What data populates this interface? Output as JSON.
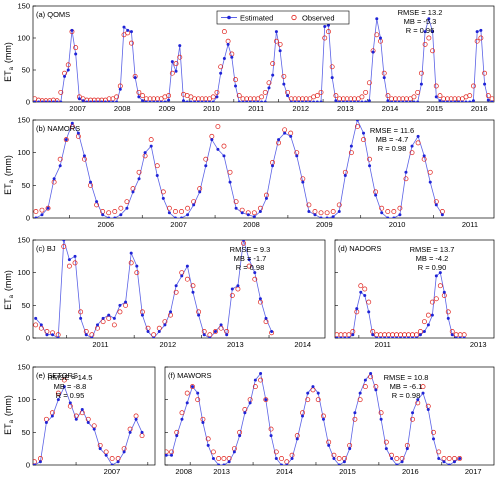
{
  "legend": {
    "estimated_label": "Estimated",
    "observed_label": "Observed",
    "placement": "top-center"
  },
  "ylabel_main": "ET",
  "ylabel_sub": "a",
  "ylabel_unit": "(mm)",
  "colors": {
    "estimated": "#1f23d6",
    "observed": "#e0221c",
    "line": "#5c63e6"
  },
  "chart_data": [
    {
      "type": "line",
      "id": "a",
      "title": "(a) QOMS",
      "stats": [
        "RMSE = 13.2",
        "MB  =  -5.3",
        "R  =  0.96"
      ],
      "ylim": [
        0,
        150
      ],
      "yticks": [
        "0",
        "50",
        "100",
        "150"
      ],
      "xticks": [
        "2007",
        "2008",
        "2009",
        "2010",
        "2011",
        "2012",
        "2013",
        "2014",
        "2015",
        "2016"
      ],
      "xlim": [
        2006.5,
        2016.83
      ],
      "x_start": 2006.54,
      "x_step": 0.0833,
      "series": [
        {
          "name": "Estimated",
          "values": [
            0,
            0,
            0,
            0,
            0,
            0,
            0,
            0,
            40,
            50,
            112,
            75,
            5,
            2,
            0,
            0,
            0,
            0,
            0,
            0,
            0,
            0,
            0,
            20,
            117,
            112,
            110,
            38,
            8,
            2,
            0,
            0,
            0,
            0,
            0,
            0,
            3,
            63,
            48,
            88,
            2,
            0,
            0,
            0,
            0,
            0,
            0,
            0,
            0,
            8,
            45,
            68,
            90,
            70,
            25,
            0,
            0,
            0,
            0,
            0,
            0,
            0,
            0,
            22,
            42,
            110,
            80,
            28,
            10,
            0,
            0,
            0,
            0,
            0,
            0,
            0,
            0,
            0,
            118,
            120,
            38,
            2,
            0,
            0,
            0,
            0,
            0,
            0,
            0,
            0,
            2,
            78,
            130,
            100,
            38,
            2,
            0,
            0,
            0,
            0,
            0,
            0,
            0,
            0,
            28,
            110,
            130,
            110,
            8,
            2,
            0,
            0,
            0,
            0,
            0,
            0,
            0,
            0,
            2,
            110,
            112,
            28,
            3,
            0,
            0,
            0,
            0,
            0,
            0,
            0,
            0,
            0,
            12,
            125,
            110,
            50,
            10,
            0
          ]
        },
        {
          "name": "Observed",
          "values": [
            5,
            3,
            2,
            2,
            2,
            3,
            2,
            15,
            45,
            58,
            110,
            85,
            8,
            5,
            3,
            3,
            3,
            3,
            3,
            3,
            5,
            5,
            8,
            25,
            105,
            108,
            92,
            40,
            15,
            10,
            5,
            5,
            5,
            5,
            5,
            8,
            10,
            45,
            60,
            70,
            12,
            10,
            8,
            5,
            5,
            5,
            5,
            5,
            8,
            15,
            55,
            110,
            95,
            75,
            35,
            10,
            5,
            5,
            5,
            5,
            5,
            8,
            15,
            30,
            60,
            95,
            90,
            40,
            15,
            5,
            5,
            5,
            5,
            5,
            5,
            8,
            10,
            15,
            100,
            110,
            55,
            10,
            5,
            5,
            5,
            5,
            5,
            5,
            8,
            15,
            30,
            80,
            105,
            95,
            45,
            10,
            5,
            5,
            5,
            5,
            5,
            5,
            8,
            15,
            45,
            90,
            100,
            80,
            25,
            10,
            5,
            5,
            5,
            5,
            5,
            5,
            8,
            10,
            25,
            95,
            100,
            45,
            10,
            5,
            5,
            5,
            5,
            5,
            5,
            8,
            10,
            15,
            30,
            105,
            100,
            60,
            20,
            5
          ]
        }
      ]
    },
    {
      "type": "line",
      "id": "b",
      "title": "(b) NAMORS",
      "stats": [
        "RMSE = 11.6",
        "MB  =  -4.7",
        "R  =  0.98"
      ],
      "ylim": [
        0,
        150
      ],
      "yticks": [
        "0",
        "50",
        "100",
        "150"
      ],
      "xticks": [
        "2006",
        "2007",
        "2008",
        "2009",
        "2010",
        "2011"
      ],
      "xlim": [
        2005.5,
        2011.83
      ],
      "x_start": 2005.54,
      "x_step": 0.0833,
      "series": [
        {
          "name": "Estimated",
          "values": [
            0,
            5,
            15,
            60,
            80,
            120,
            145,
            130,
            95,
            55,
            25,
            5,
            0,
            0,
            5,
            15,
            40,
            60,
            100,
            110,
            65,
            30,
            8,
            0,
            0,
            5,
            20,
            40,
            80,
            120,
            105,
            95,
            55,
            15,
            8,
            5,
            2,
            10,
            30,
            80,
            120,
            130,
            125,
            95,
            55,
            10,
            5,
            0,
            0,
            2,
            10,
            65,
            110,
            150,
            130,
            80,
            35,
            8,
            0,
            0,
            5,
            70,
            110,
            125,
            95,
            55,
            20,
            5
          ]
        },
        {
          "name": "Observed",
          "values": [
            10,
            12,
            15,
            55,
            90,
            120,
            140,
            125,
            90,
            50,
            20,
            10,
            8,
            10,
            15,
            25,
            45,
            70,
            95,
            120,
            80,
            40,
            15,
            10,
            10,
            15,
            25,
            45,
            90,
            125,
            140,
            110,
            70,
            25,
            12,
            8,
            8,
            15,
            35,
            85,
            115,
            135,
            130,
            100,
            60,
            20,
            10,
            8,
            8,
            10,
            20,
            70,
            100,
            140,
            120,
            90,
            40,
            15,
            10,
            10,
            15,
            60,
            100,
            115,
            90,
            70,
            25,
            10
          ]
        }
      ]
    },
    {
      "type": "line",
      "id": "c",
      "title": "(c) BJ",
      "stats": [
        "RMSE = 9.3",
        "MB  =  -1.7",
        "R  =  0.98"
      ],
      "ylim": [
        0,
        150
      ],
      "yticks": [
        "0",
        "50",
        "100",
        "150"
      ],
      "xticks": [
        "2011",
        "2012",
        "2013",
        "2014"
      ],
      "xlim": [
        2010.5,
        2014.83
      ],
      "x_start": 2010.54,
      "x_step": 0.0833,
      "series": [
        {
          "name": "Estimated",
          "values": [
            30,
            20,
            5,
            5,
            0,
            150,
            120,
            125,
            30,
            5,
            0,
            20,
            30,
            35,
            30,
            50,
            55,
            130,
            110,
            35,
            10,
            0,
            10,
            20,
            40,
            80,
            95,
            110,
            70,
            35,
            5,
            0,
            10,
            20,
            5,
            75,
            80,
            150,
            120,
            100,
            60,
            30,
            10
          ]
        },
        {
          "name": "Observed",
          "values": [
            20,
            15,
            10,
            8,
            5,
            140,
            110,
            115,
            40,
            10,
            5,
            15,
            25,
            30,
            20,
            40,
            50,
            115,
            100,
            40,
            15,
            5,
            15,
            25,
            35,
            70,
            100,
            90,
            80,
            40,
            10,
            5,
            10,
            15,
            10,
            65,
            75,
            145,
            110,
            90,
            55,
            25,
            8
          ]
        }
      ]
    },
    {
      "type": "line",
      "id": "d",
      "title": "(d) NADORS",
      "stats": [
        "RMSE = 13.7",
        "MB  =  -4.2",
        "R  =  0.90"
      ],
      "ylim": [
        0,
        150
      ],
      "yticks": [
        "0",
        "50",
        "100",
        "150"
      ],
      "xticks": [
        "2011",
        "2013"
      ],
      "xlim": [
        2010.5,
        2013.83
      ],
      "x_start": 2010.54,
      "x_step": 0.0833,
      "series": [
        {
          "name": "Estimated",
          "values": [
            0,
            0,
            0,
            0,
            5,
            45,
            70,
            65,
            40,
            5,
            0,
            0,
            0,
            0,
            0,
            0,
            0,
            0,
            0,
            0,
            0,
            5,
            10,
            20,
            35,
            95,
            100,
            70,
            30,
            5,
            0,
            0,
            0
          ]
        },
        {
          "name": "Observed",
          "values": [
            5,
            5,
            5,
            5,
            10,
            40,
            80,
            75,
            55,
            10,
            5,
            5,
            5,
            5,
            5,
            5,
            5,
            5,
            5,
            5,
            5,
            10,
            25,
            35,
            55,
            60,
            80,
            65,
            40,
            10,
            5,
            5,
            5
          ]
        }
      ]
    },
    {
      "type": "line",
      "id": "e",
      "title": "(e) SETORS",
      "stats": [
        "RMSE = 14.5",
        "MB  =  -8.8",
        "R  =  0.95"
      ],
      "ylim": [
        0,
        150
      ],
      "yticks": [
        "0",
        "50",
        "100",
        "150"
      ],
      "xticks": [
        "2007",
        "2008"
      ],
      "xlim": [
        2006.4,
        2008.1
      ],
      "x_start": 2006.42,
      "x_step": 0.0833,
      "series": [
        {
          "name": "Estimated",
          "values": [
            0,
            5,
            65,
            75,
            100,
            120,
            95,
            70,
            85,
            65,
            55,
            25,
            15,
            0,
            5,
            20,
            50,
            70,
            50
          ]
        },
        {
          "name": "Observed",
          "values": [
            5,
            10,
            70,
            80,
            110,
            130,
            90,
            75,
            80,
            70,
            60,
            30,
            20,
            10,
            10,
            25,
            55,
            75,
            45
          ]
        }
      ]
    },
    {
      "type": "line",
      "id": "f",
      "title": "(f) MAWORS",
      "stats": [
        "RMSE = 10.8",
        "MB  =  -6.1",
        "R  =  0.98"
      ],
      "ylim": [
        0,
        150
      ],
      "yticks": [
        "0",
        "50",
        "100",
        "150"
      ],
      "xticks": [
        "2013",
        "2014",
        "2015",
        "2016",
        "2017"
      ],
      "xlim": [
        2012.6,
        2017.83
      ],
      "x_start": 2012.62,
      "x_step": 0.0833,
      "series": [
        {
          "name": "Estimated",
          "values": [
            15,
            15,
            45,
            70,
            95,
            120,
            110,
            65,
            30,
            10,
            0,
            0,
            5,
            20,
            45,
            80,
            95,
            130,
            140,
            100,
            45,
            10,
            0,
            0,
            10,
            40,
            75,
            110,
            120,
            110,
            70,
            30,
            10,
            0,
            5,
            25,
            80,
            110,
            130,
            140,
            115,
            70,
            25,
            10,
            0,
            5,
            25,
            80,
            100,
            110,
            85,
            40,
            10,
            5,
            0,
            5,
            10
          ]
        },
        {
          "name": "Observed",
          "values": [
            20,
            20,
            50,
            80,
            110,
            120,
            100,
            70,
            40,
            20,
            10,
            10,
            10,
            25,
            50,
            85,
            100,
            120,
            130,
            100,
            55,
            20,
            10,
            5,
            15,
            45,
            80,
            100,
            115,
            100,
            75,
            35,
            15,
            10,
            10,
            30,
            70,
            100,
            120,
            135,
            120,
            80,
            35,
            15,
            10,
            10,
            30,
            70,
            95,
            120,
            90,
            50,
            20,
            10,
            10,
            10,
            10
          ]
        }
      ]
    }
  ]
}
